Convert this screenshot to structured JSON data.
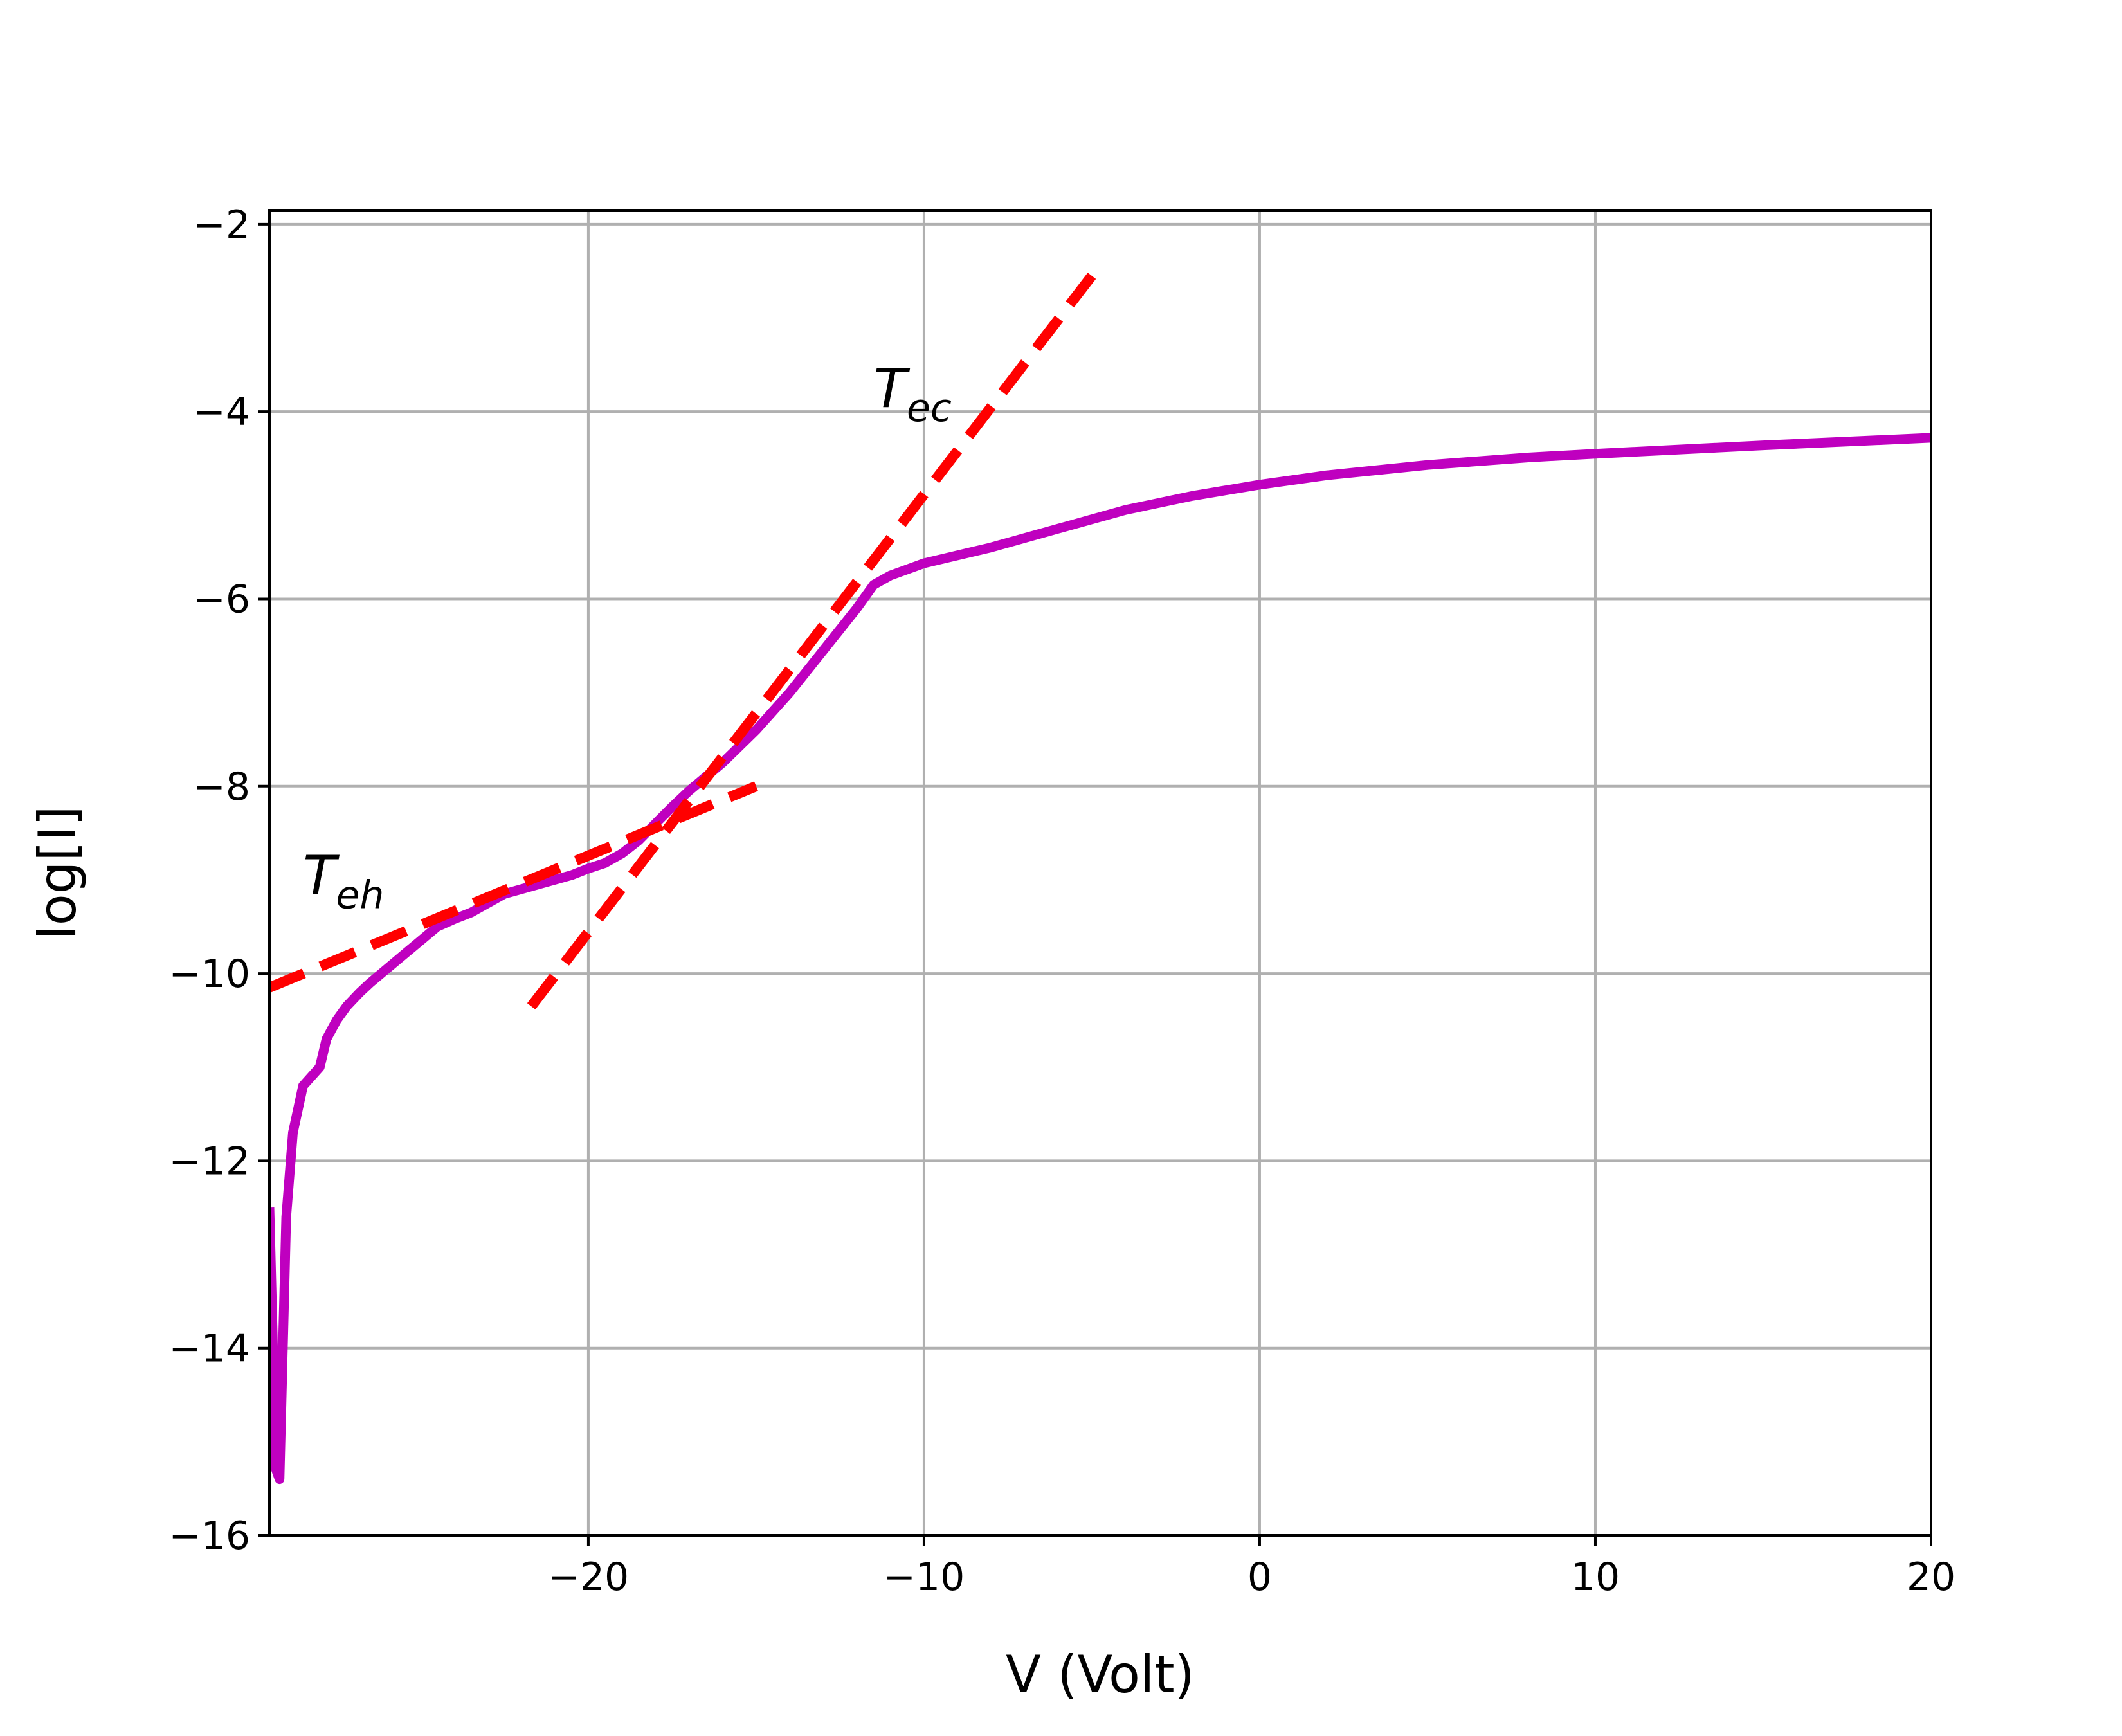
{
  "chart_data": {
    "type": "line",
    "title": "",
    "xlabel": "V (Volt)",
    "ylabel": "log[I]",
    "xlim": [
      -29.5,
      20
    ],
    "ylim": [
      -16,
      -1.85
    ],
    "grid": true,
    "xticks": [
      -20,
      -10,
      0,
      10,
      20
    ],
    "xtick_labels": [
      "−20",
      "−10",
      "0",
      "10",
      "20"
    ],
    "yticks": [
      -16,
      -14,
      -12,
      -10,
      -8,
      -6,
      -4,
      -2
    ],
    "ytick_labels": [
      "−16",
      "−14",
      "−12",
      "−10",
      "−8",
      "−6",
      "−4",
      "−2"
    ],
    "series": [
      {
        "color": "#bf00bf",
        "style": "solid",
        "x": [
          -29.5,
          -29.3,
          -29.2,
          -29.0,
          -28.8,
          -28.5,
          -28.0,
          -27.8,
          -27.5,
          -27.2,
          -26.8,
          -26.5,
          -26.0,
          -25.5,
          -25.0,
          -24.5,
          -24.0,
          -23.5,
          -23.0,
          -22.5,
          -22.0,
          -21.5,
          -21.0,
          -20.5,
          -20.0,
          -19.5,
          -19.0,
          -18.5,
          -18.0,
          -17.5,
          -17.0,
          -16.0,
          -15.0,
          -14.0,
          -13.0,
          -12.0,
          -11.5,
          -11.0,
          -10.0,
          -8.0,
          -6.0,
          -4.0,
          -2.0,
          0.0,
          2.0,
          5.0,
          8.0,
          10.0,
          15.0,
          20.0
        ],
        "y": [
          -12.5,
          -15.3,
          -15.4,
          -12.6,
          -11.7,
          -11.2,
          -11.0,
          -10.7,
          -10.5,
          -10.35,
          -10.2,
          -10.1,
          -9.95,
          -9.8,
          -9.65,
          -9.5,
          -9.42,
          -9.35,
          -9.25,
          -9.15,
          -9.1,
          -9.05,
          -9.0,
          -8.95,
          -8.88,
          -8.82,
          -8.72,
          -8.58,
          -8.4,
          -8.22,
          -8.05,
          -7.75,
          -7.4,
          -7.0,
          -6.55,
          -6.1,
          -5.85,
          -5.75,
          -5.62,
          -5.45,
          -5.25,
          -5.05,
          -4.9,
          -4.78,
          -4.68,
          -4.57,
          -4.49,
          -4.45,
          -4.36,
          -4.28
        ]
      },
      {
        "color": "#ff0000",
        "style": "dashed",
        "x": [
          -29.5,
          -15.0
        ],
        "y": [
          -10.15,
          -8.0
        ]
      },
      {
        "color": "#ff0000",
        "style": "dashed",
        "x": [
          -21.7,
          -5.0
        ],
        "y": [
          -10.35,
          -2.55
        ]
      }
    ],
    "annotations": [
      {
        "text": "T",
        "sub": "eh",
        "x": -28.5,
        "y": -9.15
      },
      {
        "text": "T",
        "sub": "ec",
        "x": -11.5,
        "y": -3.95
      }
    ]
  }
}
